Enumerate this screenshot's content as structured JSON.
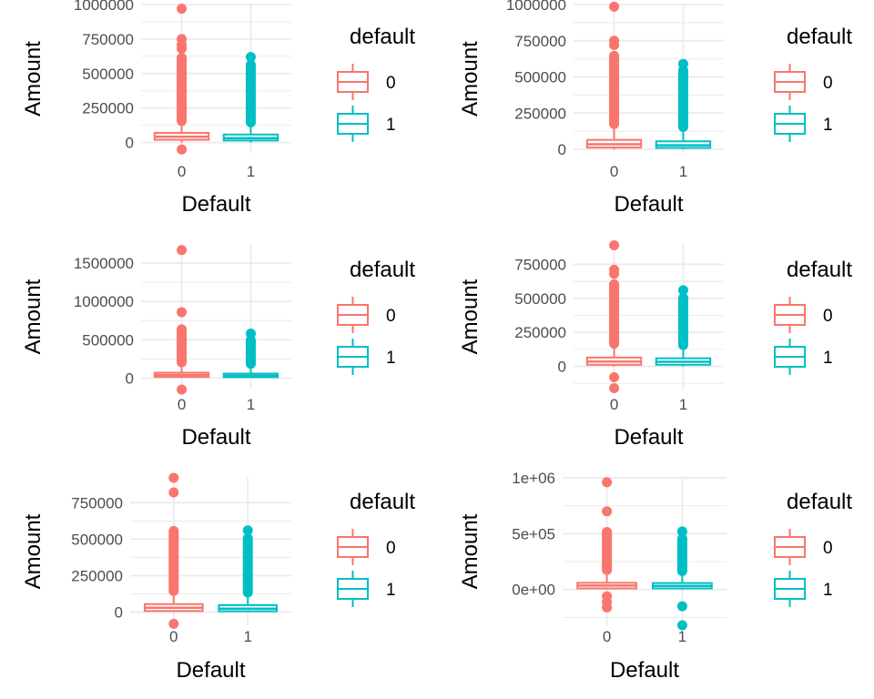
{
  "colors": {
    "default_0": "#F8766D",
    "default_1": "#00BFC4",
    "grid": "#EBEBEB"
  },
  "chart_data": [
    {
      "type": "box",
      "panel": "row-1-left",
      "xlabel": "Default",
      "ylabel": "Amount",
      "categories": [
        "0",
        "1"
      ],
      "yticks": [
        0,
        250000,
        500000,
        750000,
        1000000
      ],
      "ytick_labels": [
        "0",
        "250000",
        "500000",
        "750000",
        "1000000"
      ],
      "ylim": [
        -75000,
        1000000
      ],
      "legend": {
        "title": "default",
        "entries": [
          "0",
          "1"
        ],
        "position": "right"
      },
      "boxes": [
        {
          "name": "0",
          "q1": 20000,
          "median": 42000,
          "q3": 70000,
          "whisker_low": 0,
          "whisker_high": 120000,
          "outliers_max": 970000,
          "outliers_dense_to": 650000,
          "outliers_low": [
            -50000
          ],
          "outliers_high_sparse": [
            750000,
            710000,
            680000
          ]
        },
        {
          "name": "1",
          "q1": 15000,
          "median": 32000,
          "q3": 58000,
          "whisker_low": 0,
          "whisker_high": 110000,
          "outliers_max": 620000,
          "outliers_dense_to": 600000,
          "outliers_low": [],
          "outliers_high_sparse": []
        }
      ]
    },
    {
      "type": "box",
      "panel": "row-1-right",
      "xlabel": "Default",
      "ylabel": "Amount",
      "categories": [
        "0",
        "1"
      ],
      "yticks": [
        0,
        250000,
        500000,
        750000,
        1000000
      ],
      "ytick_labels": [
        "0",
        "250000",
        "500000",
        "750000",
        "1000000"
      ],
      "ylim": [
        -25000,
        1000000
      ],
      "legend": {
        "title": "default",
        "entries": [
          "0",
          "1"
        ],
        "position": "right"
      },
      "boxes": [
        {
          "name": "0",
          "q1": 12000,
          "median": 35000,
          "q3": 65000,
          "whisker_low": 0,
          "whisker_high": 140000,
          "outliers_max": 985000,
          "outliers_dense_to": 680000,
          "outliers_low": [],
          "outliers_high_sparse": [
            750000,
            720000
          ]
        },
        {
          "name": "1",
          "q1": 10000,
          "median": 28000,
          "q3": 55000,
          "whisker_low": 0,
          "whisker_high": 120000,
          "outliers_max": 590000,
          "outliers_dense_to": 580000,
          "outliers_low": [],
          "outliers_high_sparse": []
        }
      ]
    },
    {
      "type": "box",
      "panel": "row-2-left",
      "xlabel": "Default",
      "ylabel": "Amount",
      "categories": [
        "0",
        "1"
      ],
      "yticks": [
        0,
        500000,
        1000000,
        1500000
      ],
      "ytick_labels": [
        "0",
        "500000",
        "1000000",
        "1500000"
      ],
      "ylim": [
        -150000,
        1750000
      ],
      "legend": {
        "title": "default",
        "entries": [
          "0",
          "1"
        ],
        "position": "right"
      },
      "boxes": [
        {
          "name": "0",
          "q1": 15000,
          "median": 40000,
          "q3": 70000,
          "whisker_low": 0,
          "whisker_high": 140000,
          "outliers_max": 1670000,
          "outliers_dense_to": 700000,
          "outliers_low": [
            -150000
          ],
          "outliers_high_sparse": [
            860000
          ]
        },
        {
          "name": "1",
          "q1": 12000,
          "median": 30000,
          "q3": 58000,
          "whisker_low": 0,
          "whisker_high": 120000,
          "outliers_max": 580000,
          "outliers_dense_to": 560000,
          "outliers_low": [],
          "outliers_high_sparse": []
        }
      ]
    },
    {
      "type": "box",
      "panel": "row-2-right",
      "xlabel": "Default",
      "ylabel": "Amount",
      "categories": [
        "0",
        "1"
      ],
      "yticks": [
        0,
        250000,
        500000,
        750000
      ],
      "ytick_labels": [
        "0",
        "250000",
        "500000",
        "750000"
      ],
      "ylim": [
        -170000,
        900000
      ],
      "legend": {
        "title": "default",
        "entries": [
          "0",
          "1"
        ],
        "position": "right"
      },
      "boxes": [
        {
          "name": "0",
          "q1": 12000,
          "median": 36000,
          "q3": 65000,
          "whisker_low": 0,
          "whisker_high": 130000,
          "outliers_max": 890000,
          "outliers_dense_to": 640000,
          "outliers_low": [
            -80000,
            -160000
          ],
          "outliers_high_sparse": [
            710000,
            680000
          ]
        },
        {
          "name": "1",
          "q1": 12000,
          "median": 34000,
          "q3": 60000,
          "whisker_low": 0,
          "whisker_high": 120000,
          "outliers_max": 560000,
          "outliers_dense_to": 540000,
          "outliers_low": [],
          "outliers_high_sparse": []
        }
      ]
    },
    {
      "type": "box",
      "panel": "row-3-left",
      "xlabel": "Default",
      "ylabel": "Amount",
      "categories": [
        "0",
        "1"
      ],
      "yticks": [
        0,
        250000,
        500000,
        750000
      ],
      "ytick_labels": [
        "0",
        "250000",
        "500000",
        "750000"
      ],
      "ylim": [
        -90000,
        920000
      ],
      "legend": {
        "title": "default",
        "entries": [
          "0",
          "1"
        ],
        "position": "right"
      },
      "boxes": [
        {
          "name": "0",
          "q1": 8000,
          "median": 30000,
          "q3": 55000,
          "whisker_low": 0,
          "whisker_high": 110000,
          "outliers_max": 920000,
          "outliers_dense_to": 590000,
          "outliers_low": [
            -80000
          ],
          "outliers_high_sparse": [
            820000
          ]
        },
        {
          "name": "1",
          "q1": 6000,
          "median": 24000,
          "q3": 48000,
          "whisker_low": 0,
          "whisker_high": 100000,
          "outliers_max": 560000,
          "outliers_dense_to": 540000,
          "outliers_low": [],
          "outliers_high_sparse": []
        }
      ]
    },
    {
      "type": "box",
      "panel": "row-3-right",
      "xlabel": "Default",
      "ylabel": "Amount",
      "categories": [
        "0",
        "1"
      ],
      "yticks": [
        0,
        500000,
        1000000
      ],
      "ytick_labels": [
        "0e+00",
        "5e+05",
        "1e+06"
      ],
      "ylim": [
        -320000,
        1000000
      ],
      "legend": {
        "title": "default",
        "entries": [
          "0",
          "1"
        ],
        "position": "right"
      },
      "boxes": [
        {
          "name": "0",
          "q1": 10000,
          "median": 35000,
          "q3": 60000,
          "whisker_low": 0,
          "whisker_high": 130000,
          "outliers_max": 960000,
          "outliers_dense_to": 560000,
          "outliers_low": [
            -60000,
            -110000,
            -160000
          ],
          "outliers_high_sparse": [
            700000
          ]
        },
        {
          "name": "1",
          "q1": 10000,
          "median": 32000,
          "q3": 58000,
          "whisker_low": 0,
          "whisker_high": 120000,
          "outliers_max": 520000,
          "outliers_dense_to": 500000,
          "outliers_low": [
            -150000,
            -320000
          ],
          "outliers_high_sparse": []
        }
      ]
    }
  ]
}
